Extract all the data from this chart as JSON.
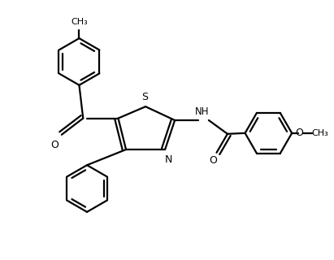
{
  "background_color": "#ffffff",
  "line_color": "#000000",
  "line_width": 1.6,
  "figsize": [
    4.11,
    3.2
  ],
  "dpi": 100,
  "xlim": [
    0,
    8.5
  ],
  "ylim": [
    0,
    6.6
  ]
}
